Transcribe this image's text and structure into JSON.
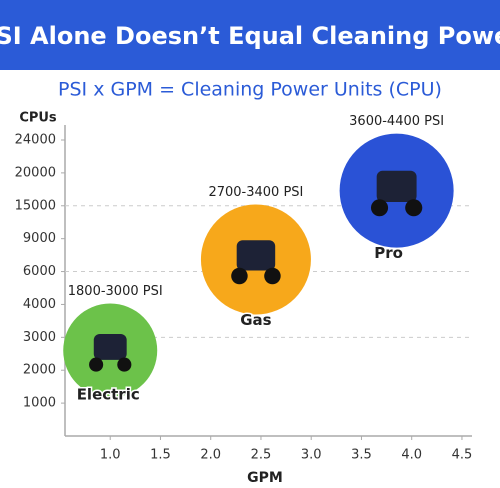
{
  "chart_data": {
    "type": "bubble",
    "title": "PSI Alone Doesn’t Equal Cleaning Power",
    "subtitle": "PSI x GPM = Cleaning Power Units (CPU)",
    "y_label": "CPUs",
    "x_label": "GPM",
    "xlim": [
      0.55,
      4.6
    ],
    "xticks": [
      {
        "value": 1,
        "label": "1.0"
      },
      1.5,
      {
        "value": 2,
        "label": "2.0"
      },
      2.5,
      {
        "value": 3,
        "label": "3.0"
      },
      3.5,
      {
        "value": 4,
        "label": "4.0"
      },
      4.5
    ],
    "ylim": [
      0,
      24000
    ],
    "yticks": [
      1000,
      2000,
      3000,
      4000,
      6000,
      9000,
      15000,
      20000,
      24000
    ],
    "grid": [
      3000,
      6000,
      15000
    ],
    "points": [
      {
        "name": "Electric",
        "label": "1800-3000 PSI",
        "x": 1.0,
        "y": 2600,
        "color": "#6cc24a"
      },
      {
        "name": "Gas",
        "label": "2700-3400 PSI",
        "x": 2.45,
        "y": 7100,
        "color": "#f7a81b"
      },
      {
        "name": "Pro",
        "label": "3600-4400 PSI",
        "x": 3.85,
        "y": 17300,
        "color": "#2a52d6"
      }
    ]
  }
}
